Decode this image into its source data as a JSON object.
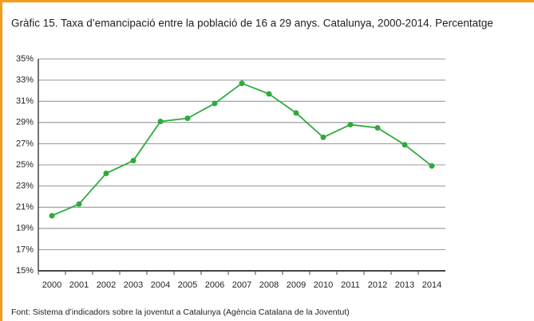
{
  "chart_data": {
    "type": "line",
    "title": "Gràfic 15. Taxa d’emancipació entre la població de 16 a 29 anys. Catalunya, 2000-2014. Percentatge",
    "source": "Font: Sistema d’indicadors sobre la joventut a Catalunya (Agència Catalana de la Joventut)",
    "categories": [
      "2000",
      "2001",
      "2002",
      "2003",
      "2004",
      "2005",
      "2006",
      "2007",
      "2008",
      "2009",
      "2010",
      "2011",
      "2012",
      "2013",
      "2014"
    ],
    "series": [
      {
        "name": "Taxa d’emancipació",
        "color": "#2eaa3c",
        "values": [
          20.2,
          21.3,
          24.2,
          25.4,
          29.1,
          29.4,
          30.8,
          32.7,
          31.7,
          29.9,
          27.6,
          28.8,
          28.5,
          26.9,
          24.9
        ]
      }
    ],
    "ylim": [
      15,
      35
    ],
    "yticks": [
      {
        "value": 15,
        "label": "15%"
      },
      {
        "value": 17,
        "label": "17%"
      },
      {
        "value": 19,
        "label": "19%"
      },
      {
        "value": 21,
        "label": "21%"
      },
      {
        "value": 23,
        "label": "23%"
      },
      {
        "value": 25,
        "label": "25%"
      },
      {
        "value": 27,
        "label": "27%"
      },
      {
        "value": 29,
        "label": "29%"
      },
      {
        "value": 31,
        "label": "31%"
      },
      {
        "value": 33,
        "label": "33%"
      },
      {
        "value": 35,
        "label": "35%"
      }
    ],
    "grid": true
  }
}
